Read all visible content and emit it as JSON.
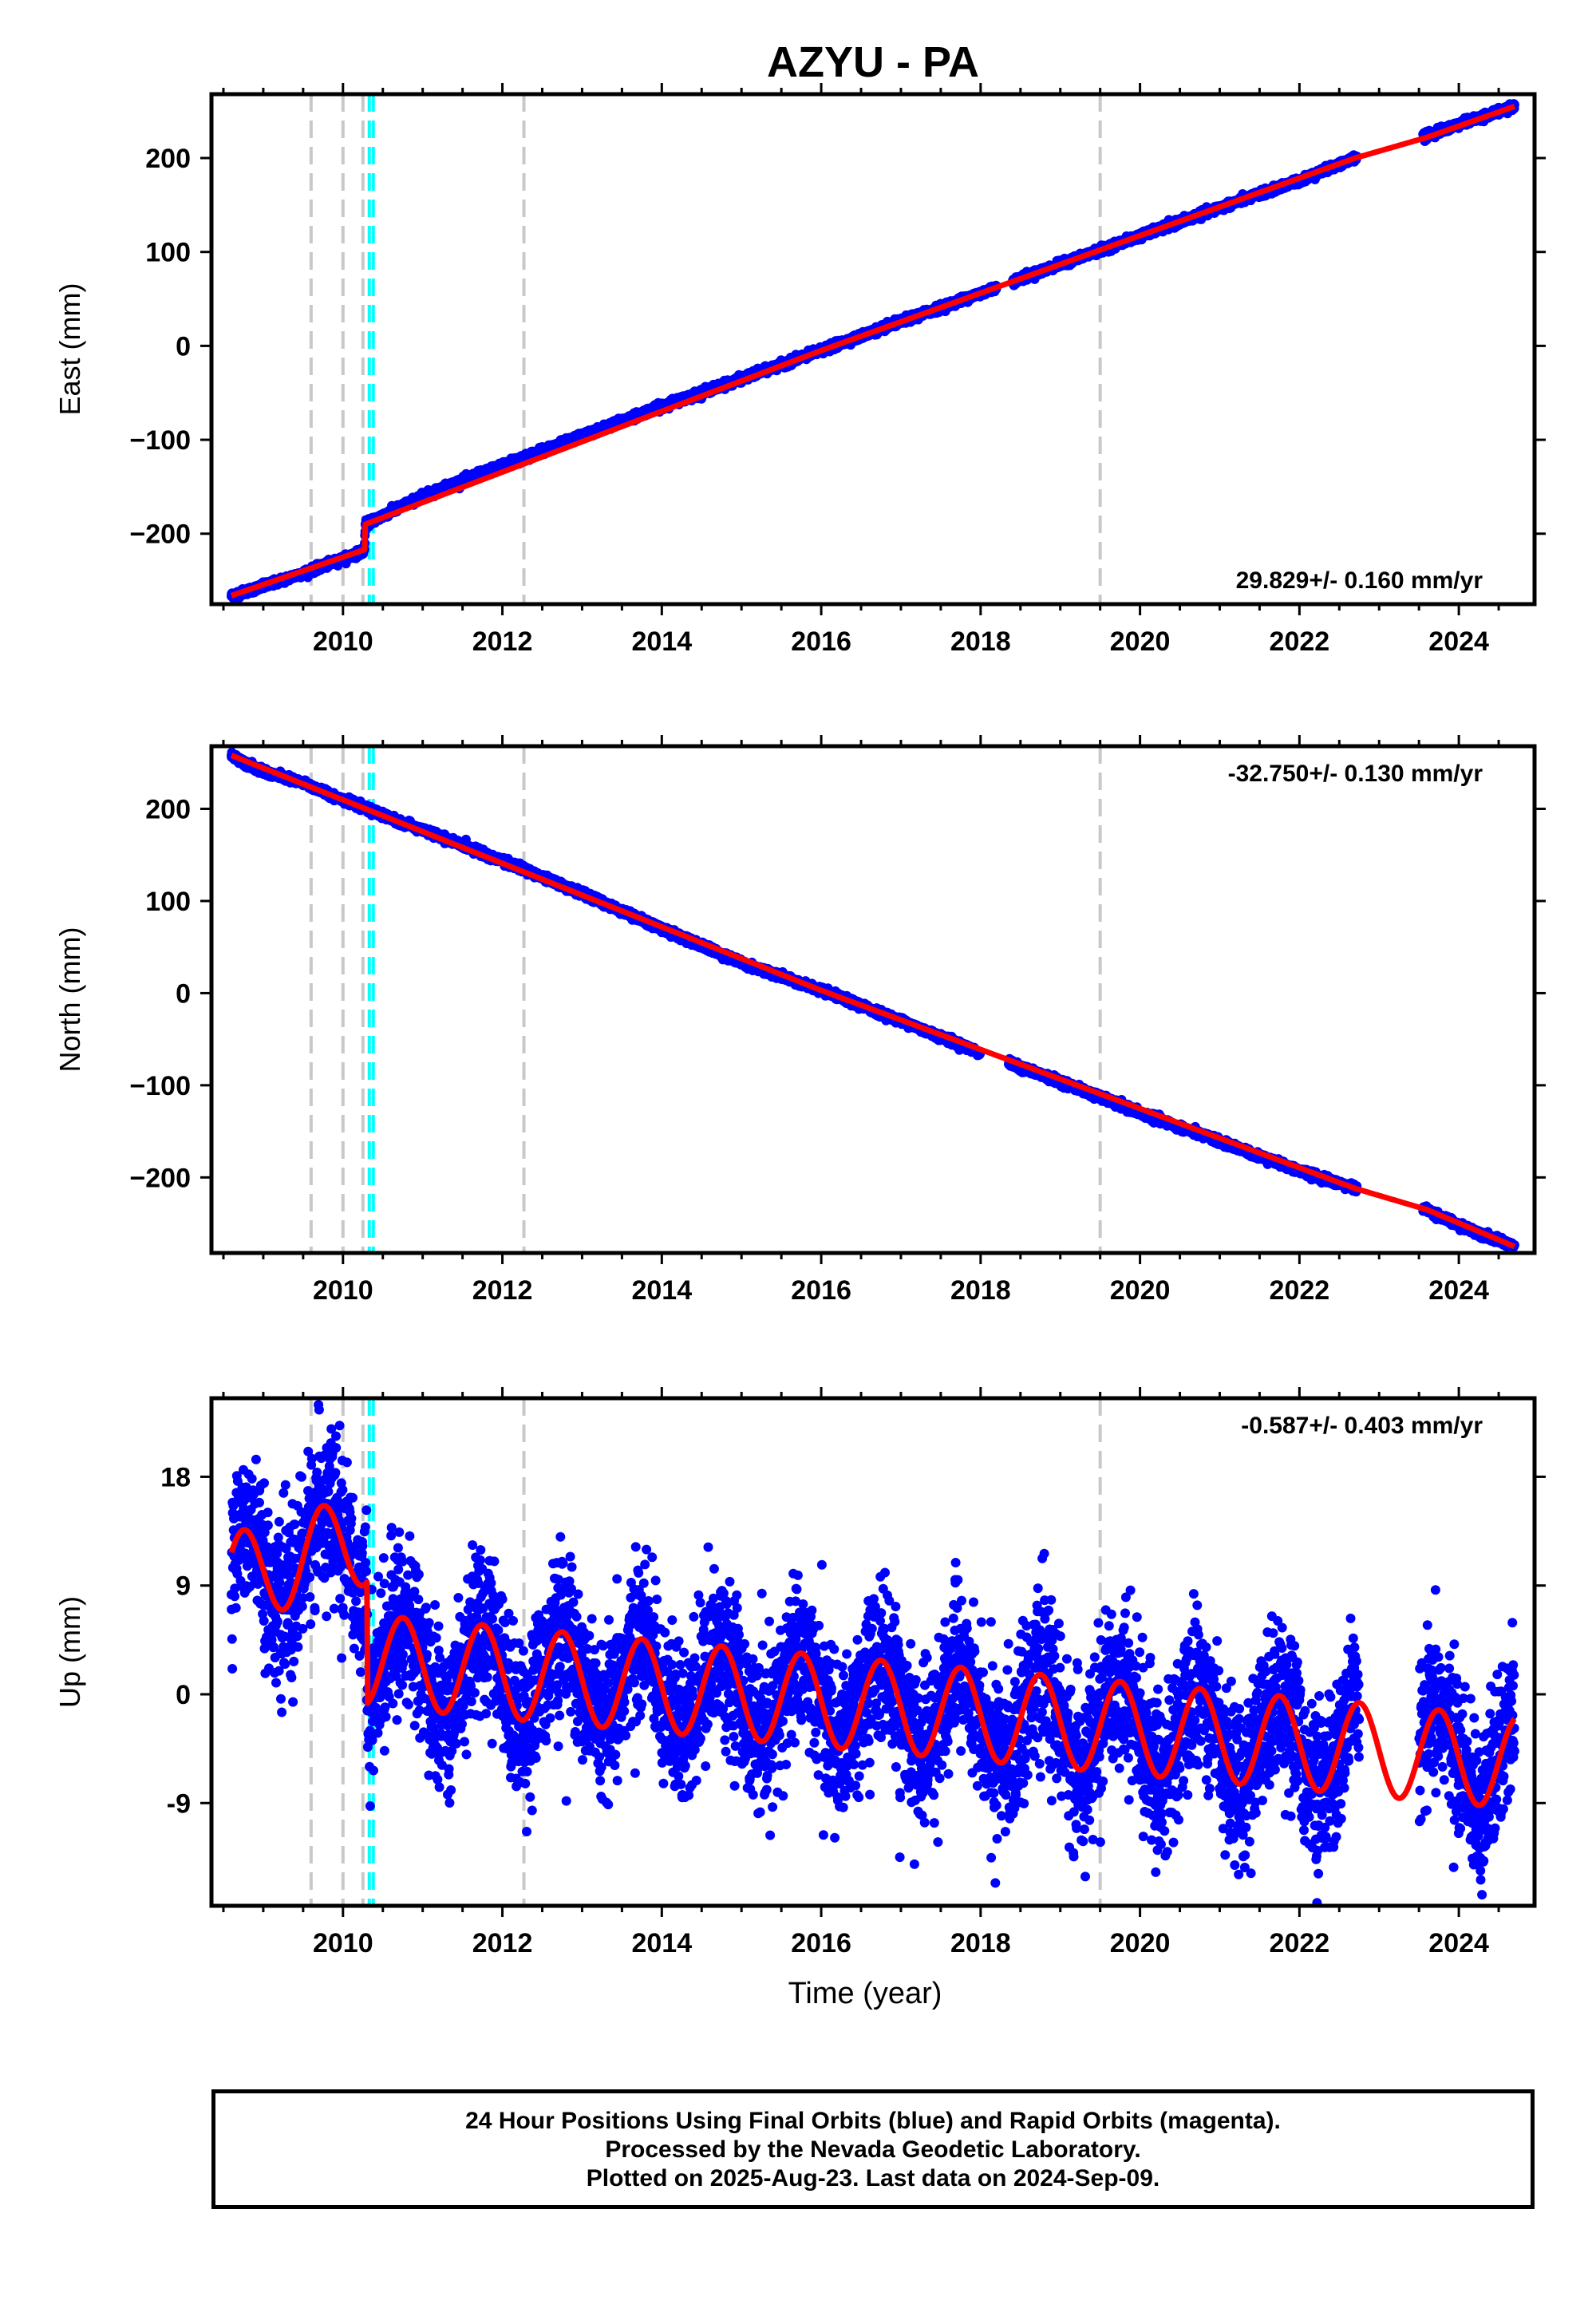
{
  "colors": {
    "points": "#0000ff",
    "model": "#ff0000",
    "equipment_change_lines": "#c8c8c8",
    "earthquake_lines": "#00ffff",
    "frame": "#000000"
  },
  "footer": {
    "line1": "24 Hour Positions Using Final Orbits (blue) and Rapid Orbits (magenta).",
    "line2": "Processed by the Nevada Geodetic Laboratory.",
    "line3": "Plotted on 2025-Aug-23. Last data on 2024-Sep-09."
  },
  "chart_data": [
    {
      "type": "scatter",
      "title": "AZYU - PA",
      "ylabel": "East (mm)",
      "xlabel": "",
      "xlim": [
        2008.35,
        2024.95
      ],
      "ylim": [
        -275,
        268
      ],
      "xticks": [
        2010,
        2012,
        2014,
        2016,
        2018,
        2020,
        2022,
        2024
      ],
      "yticks": [
        -200,
        -100,
        0,
        100,
        200
      ],
      "ytick_labels": [
        "−200",
        "−100",
        "0",
        "100",
        "200"
      ],
      "rate_label": "29.829+/- 0.160 mm/yr",
      "rate_label_position": "bottom-right",
      "series": [
        {
          "name": "",
          "kind": "daily positions",
          "x_range": [
            2008.6,
            2024.7
          ],
          "points": [
            [
              2008.6,
              -266
            ],
            [
              2009.0,
              -256
            ],
            [
              2009.5,
              -242
            ],
            [
              2010.0,
              -227
            ],
            [
              2010.27,
              -218
            ],
            [
              2010.28,
              -190
            ],
            [
              2011.0,
              -160
            ],
            [
              2012.0,
              -127
            ],
            [
              2013.0,
              -96
            ],
            [
              2014.0,
              -64
            ],
            [
              2015.0,
              -35
            ],
            [
              2016.0,
              -5
            ],
            [
              2017.0,
              26
            ],
            [
              2018.0,
              56
            ],
            [
              2019.0,
              87
            ],
            [
              2020.0,
              117
            ],
            [
              2021.0,
              147
            ],
            [
              2022.0,
              176
            ],
            [
              2022.7,
              200
            ],
            [
              2023.6,
              224
            ],
            [
              2024.0,
              236
            ],
            [
              2024.7,
              255
            ]
          ]
        },
        {
          "name": "",
          "kind": "model fit",
          "x_range": [
            2008.6,
            2024.7
          ],
          "points": [
            [
              2008.6,
              -266
            ],
            [
              2010.27,
              -217
            ],
            [
              2010.28,
              -190
            ],
            [
              2016.0,
              -5
            ],
            [
              2022.7,
              200
            ],
            [
              2023.6,
              222
            ],
            [
              2024.7,
              255
            ]
          ]
        }
      ],
      "equipment_changes": [
        2009.6,
        2010.0,
        2010.25,
        2012.27,
        2019.5
      ],
      "earthquakes": [
        2010.33,
        2010.38
      ]
    },
    {
      "type": "scatter",
      "title": "",
      "ylabel": "North (mm)",
      "xlabel": "",
      "xlim": [
        2008.35,
        2024.95
      ],
      "ylim": [
        -282,
        268
      ],
      "xticks": [
        2010,
        2012,
        2014,
        2016,
        2018,
        2020,
        2022,
        2024
      ],
      "yticks": [
        -200,
        -100,
        0,
        100,
        200
      ],
      "ytick_labels": [
        "−200",
        "−100",
        "0",
        "100",
        "200"
      ],
      "rate_label": "-32.750+/- 0.130 mm/yr",
      "rate_label_position": "top-right",
      "series": [
        {
          "name": "",
          "kind": "daily positions",
          "x_range": [
            2008.6,
            2024.7
          ],
          "points": [
            [
              2008.6,
              258
            ],
            [
              2009.0,
              240
            ],
            [
              2009.5,
              228
            ],
            [
              2010.0,
              210
            ],
            [
              2010.5,
              193
            ],
            [
              2011.0,
              177
            ],
            [
              2012.0,
              144
            ],
            [
              2013.0,
              108
            ],
            [
              2014.0,
              70
            ],
            [
              2015.0,
              33
            ],
            [
              2016.0,
              3
            ],
            [
              2017.0,
              -30
            ],
            [
              2018.0,
              -65
            ],
            [
              2019.0,
              -96
            ],
            [
              2020.0,
              -130
            ],
            [
              2021.0,
              -161
            ],
            [
              2022.0,
              -193
            ],
            [
              2022.7,
              -212
            ],
            [
              2023.6,
              -235
            ],
            [
              2024.0,
              -252
            ],
            [
              2024.7,
              -275
            ]
          ]
        },
        {
          "name": "",
          "kind": "model fit",
          "x_range": [
            2008.6,
            2024.7
          ],
          "points": [
            [
              2008.6,
              258
            ],
            [
              2016.0,
              3
            ],
            [
              2022.7,
              -212
            ],
            [
              2023.6,
              -235
            ],
            [
              2024.7,
              -275
            ]
          ]
        }
      ],
      "equipment_changes": [
        2009.6,
        2010.0,
        2010.25,
        2012.27,
        2019.5
      ],
      "earthquakes": [
        2010.33,
        2010.38
      ]
    },
    {
      "type": "scatter",
      "title": "",
      "ylabel": "Up (mm)",
      "xlabel": "Time (year)",
      "xlim": [
        2008.35,
        2024.95
      ],
      "ylim": [
        -17.5,
        24.5
      ],
      "xticks": [
        2010,
        2012,
        2014,
        2016,
        2018,
        2020,
        2022,
        2024
      ],
      "yticks": [
        -9,
        0,
        9,
        18
      ],
      "ytick_labels": [
        "-9",
        "0",
        "9",
        "18"
      ],
      "rate_label": "-0.587+/- 0.403 mm/yr",
      "rate_label_position": "top-right",
      "series": [
        {
          "name": "",
          "kind": "daily positions",
          "x_range": [
            2008.6,
            2024.7
          ],
          "data_gap": [
            2022.75,
            2023.5
          ],
          "scatter_half_width_mm": 5
        },
        {
          "name": "",
          "kind": "model fit (seasonal)",
          "x_range": [
            2008.6,
            2024.7
          ],
          "offset_before_2010_3": 9.5,
          "trend_mm_per_yr": -0.587,
          "seasonal_amplitude_mm": 3.8,
          "seasonal_peak_fraction_of_year": 0.75
        }
      ],
      "equipment_changes": [
        2009.6,
        2010.0,
        2010.25,
        2012.27,
        2019.5
      ],
      "earthquakes": [
        2010.33,
        2010.38
      ]
    }
  ]
}
